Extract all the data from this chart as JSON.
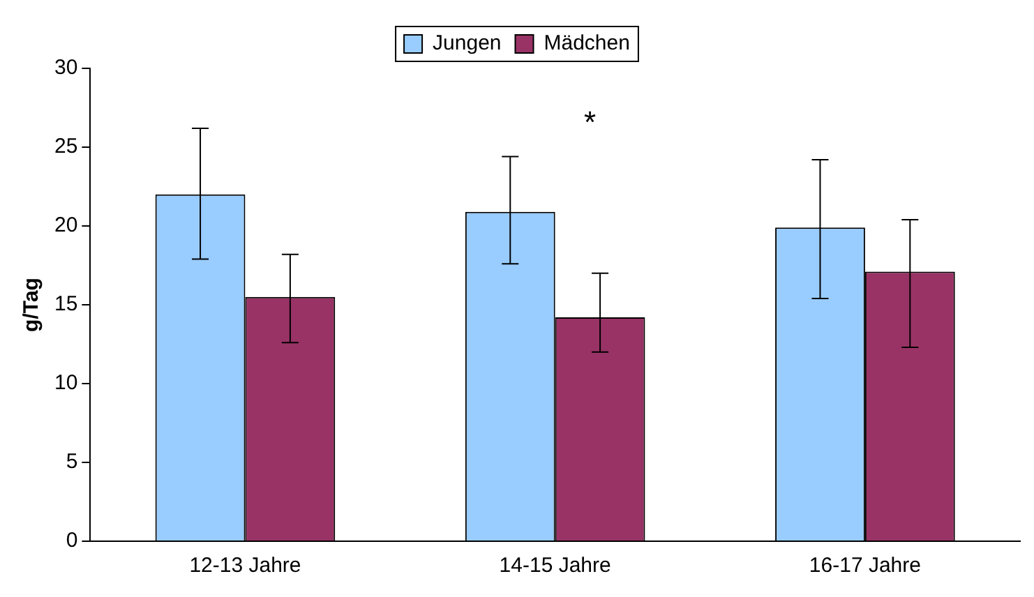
{
  "chart_data": {
    "type": "bar",
    "ylabel": "g/Tag",
    "categories": [
      "12-13 Jahre",
      "14-15 Jahre",
      "16-17 Jahre"
    ],
    "series": [
      {
        "name": "Jungen",
        "color": "#99ccff",
        "values": [
          22,
          20.9,
          19.9
        ],
        "errors": [
          [
            17.9,
            26.2
          ],
          [
            17.6,
            24.4
          ],
          [
            15.4,
            24.2
          ]
        ]
      },
      {
        "name": "Mädchen",
        "color": "#993366",
        "values": [
          15.5,
          14.2,
          17.1
        ],
        "errors": [
          [
            12.6,
            18.2
          ],
          [
            12.0,
            17.0
          ],
          [
            12.3,
            20.4
          ]
        ]
      }
    ],
    "ylim": [
      0,
      30
    ],
    "yticks": [
      0,
      5,
      10,
      15,
      20,
      25,
      30
    ],
    "grid": false,
    "legend": "top",
    "annotations": [
      "*"
    ]
  }
}
